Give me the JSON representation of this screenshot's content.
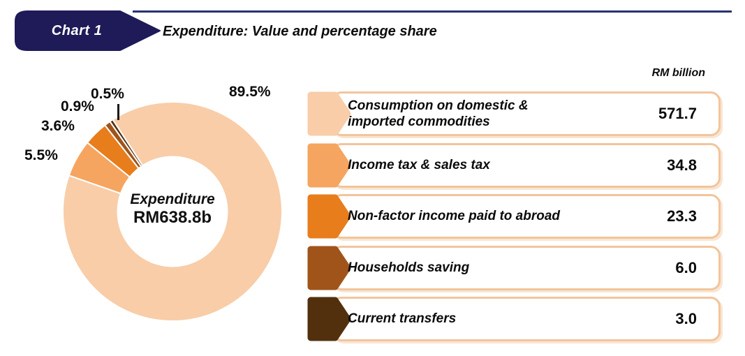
{
  "header": {
    "badge_label": "Chart 1",
    "title": "Expenditure: Value and percentage share"
  },
  "unit_label": "RM billion",
  "colors": {
    "badge_navy": "#1F1B58",
    "rule_navy": "#2A3172",
    "legend_box_border": "#F2C59C",
    "slice_consumption": "#F8CDA8",
    "slice_income_tax": "#F5A55F",
    "slice_non_factor": "#E87D1C",
    "slice_households": "#A0541A",
    "slice_current_transfers": "#52300E"
  },
  "chart_data": {
    "type": "pie",
    "title": "Expenditure: Value and percentage share",
    "subtype": "donut",
    "center_label": "Expenditure",
    "center_value": "RM638.8b",
    "unit": "RM billion",
    "total_rm_billion": 638.8,
    "start_angle_deg_clockwise_from_top": 327,
    "donut_hole_ratio": 0.5,
    "legend_position": "right",
    "segments": [
      {
        "label": "Consumption on domestic & imported commodities",
        "pct": 89.5,
        "pct_label": "89.5%",
        "value": 571.7,
        "color": "#F8CDA8"
      },
      {
        "label": "Income tax & sales tax",
        "pct": 5.5,
        "pct_label": "5.5%",
        "value": 34.8,
        "color": "#F5A55F"
      },
      {
        "label": "Non-factor income paid to abroad",
        "pct": 3.6,
        "pct_label": "3.6%",
        "value": 23.3,
        "color": "#E87D1C"
      },
      {
        "label": "Households saving",
        "pct": 0.9,
        "pct_label": "0.9%",
        "value": 6.0,
        "color": "#A0541A"
      },
      {
        "label": "Current transfers",
        "pct": 0.5,
        "pct_label": "0.5%",
        "value": 3.0,
        "color": "#52300E"
      }
    ]
  },
  "legend": {
    "rows": [
      {
        "lines": [
          "Consumption on domestic &",
          "imported commodities"
        ],
        "value": "571.7",
        "color": "#F8CDA8"
      },
      {
        "lines": [
          "Income tax & sales tax"
        ],
        "value": "34.8",
        "color": "#F5A55F"
      },
      {
        "lines": [
          "Non-factor income paid to abroad"
        ],
        "value": "23.3",
        "color": "#E87D1C"
      },
      {
        "lines": [
          "Households saving"
        ],
        "value": "6.0",
        "color": "#A0541A"
      },
      {
        "lines": [
          "Current transfers"
        ],
        "value": "3.0",
        "color": "#52300E"
      }
    ]
  }
}
